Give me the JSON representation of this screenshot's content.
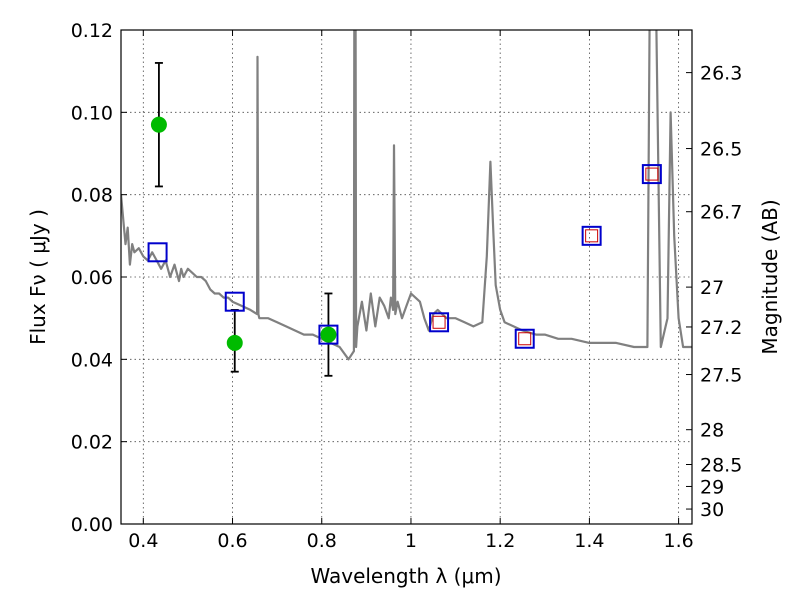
{
  "chart_data": {
    "type": "scatter",
    "title": "",
    "xlabel": "Wavelength  λ (μm)",
    "ylabel": "Flux  Fν  ( μJy )",
    "y2label": "Magnitude (AB)",
    "xlim": [
      0.35,
      1.63
    ],
    "ylim": [
      0,
      0.12
    ],
    "grid": true,
    "legend": "none",
    "x_ticks": [
      {
        "value": 0.4,
        "label": "0.4"
      },
      {
        "value": 0.6,
        "label": "0.6"
      },
      {
        "value": 0.8,
        "label": "0.8"
      },
      {
        "value": 1.0,
        "label": "1"
      },
      {
        "value": 1.2,
        "label": "1.2"
      },
      {
        "value": 1.4,
        "label": "1.4"
      },
      {
        "value": 1.6,
        "label": "1.6"
      }
    ],
    "y_ticks": [
      {
        "value": 0.0,
        "label": "0.00"
      },
      {
        "value": 0.02,
        "label": "0.02"
      },
      {
        "value": 0.04,
        "label": "0.04"
      },
      {
        "value": 0.06,
        "label": "0.06"
      },
      {
        "value": 0.08,
        "label": "0.08"
      },
      {
        "value": 0.1,
        "label": "0.10"
      },
      {
        "value": 0.12,
        "label": "0.12"
      }
    ],
    "y2_ticks": [
      {
        "value": 26.3,
        "label": "26.3"
      },
      {
        "value": 26.5,
        "label": "26.5"
      },
      {
        "value": 26.7,
        "label": "26.7"
      },
      {
        "value": 27.0,
        "label": "27"
      },
      {
        "value": 27.2,
        "label": "27.2"
      },
      {
        "value": 27.5,
        "label": "27.5"
      },
      {
        "value": 28.0,
        "label": "28"
      },
      {
        "value": 28.5,
        "label": "28.5"
      },
      {
        "value": 29.0,
        "label": "29"
      },
      {
        "value": 30.0,
        "label": "30"
      }
    ],
    "series": [
      {
        "kind": "line",
        "color": "#808080",
        "points": [
          [
            0.35,
            0.08
          ],
          [
            0.36,
            0.068
          ],
          [
            0.365,
            0.072
          ],
          [
            0.37,
            0.063
          ],
          [
            0.375,
            0.068
          ],
          [
            0.38,
            0.066
          ],
          [
            0.39,
            0.067
          ],
          [
            0.4,
            0.065
          ],
          [
            0.41,
            0.064
          ],
          [
            0.42,
            0.066
          ],
          [
            0.43,
            0.064
          ],
          [
            0.44,
            0.062
          ],
          [
            0.45,
            0.064
          ],
          [
            0.46,
            0.06
          ],
          [
            0.47,
            0.063
          ],
          [
            0.48,
            0.059
          ],
          [
            0.485,
            0.062
          ],
          [
            0.49,
            0.06
          ],
          [
            0.5,
            0.062
          ],
          [
            0.51,
            0.061
          ],
          [
            0.52,
            0.06
          ],
          [
            0.53,
            0.06
          ],
          [
            0.54,
            0.059
          ],
          [
            0.55,
            0.057
          ],
          [
            0.56,
            0.056
          ],
          [
            0.57,
            0.056
          ],
          [
            0.58,
            0.055
          ],
          [
            0.59,
            0.055
          ],
          [
            0.6,
            0.054
          ],
          [
            0.62,
            0.053
          ],
          [
            0.64,
            0.052
          ],
          [
            0.655,
            0.051
          ],
          [
            0.656,
            0.1135
          ],
          [
            0.658,
            0.051
          ],
          [
            0.66,
            0.05
          ],
          [
            0.68,
            0.05
          ],
          [
            0.7,
            0.049
          ],
          [
            0.72,
            0.048
          ],
          [
            0.74,
            0.047
          ],
          [
            0.76,
            0.046
          ],
          [
            0.78,
            0.046
          ],
          [
            0.8,
            0.045
          ],
          [
            0.82,
            0.044
          ],
          [
            0.84,
            0.043
          ],
          [
            0.86,
            0.04
          ],
          [
            0.872,
            0.042
          ],
          [
            0.873,
            0.122
          ],
          [
            0.876,
            0.122
          ],
          [
            0.877,
            0.043
          ],
          [
            0.88,
            0.048
          ],
          [
            0.89,
            0.054
          ],
          [
            0.9,
            0.047
          ],
          [
            0.91,
            0.056
          ],
          [
            0.92,
            0.048
          ],
          [
            0.93,
            0.055
          ],
          [
            0.94,
            0.053
          ],
          [
            0.95,
            0.05
          ],
          [
            0.955,
            0.055
          ],
          [
            0.96,
            0.052
          ],
          [
            0.962,
            0.092
          ],
          [
            0.965,
            0.051
          ],
          [
            0.97,
            0.054
          ],
          [
            0.98,
            0.05
          ],
          [
            0.99,
            0.053
          ],
          [
            1.0,
            0.056
          ],
          [
            1.01,
            0.055
          ],
          [
            1.02,
            0.054
          ],
          [
            1.03,
            0.05
          ],
          [
            1.04,
            0.047
          ],
          [
            1.05,
            0.051
          ],
          [
            1.06,
            0.052
          ],
          [
            1.08,
            0.05
          ],
          [
            1.1,
            0.05
          ],
          [
            1.12,
            0.049
          ],
          [
            1.14,
            0.048
          ],
          [
            1.16,
            0.049
          ],
          [
            1.17,
            0.065
          ],
          [
            1.178,
            0.088
          ],
          [
            1.185,
            0.07
          ],
          [
            1.19,
            0.058
          ],
          [
            1.2,
            0.052
          ],
          [
            1.21,
            0.049
          ],
          [
            1.23,
            0.048
          ],
          [
            1.25,
            0.047
          ],
          [
            1.28,
            0.046
          ],
          [
            1.3,
            0.046
          ],
          [
            1.33,
            0.045
          ],
          [
            1.36,
            0.045
          ],
          [
            1.4,
            0.044
          ],
          [
            1.43,
            0.044
          ],
          [
            1.46,
            0.044
          ],
          [
            1.5,
            0.043
          ],
          [
            1.53,
            0.043
          ],
          [
            1.535,
            0.122
          ],
          [
            1.55,
            0.122
          ],
          [
            1.56,
            0.043
          ],
          [
            1.575,
            0.05
          ],
          [
            1.582,
            0.1
          ],
          [
            1.59,
            0.07
          ],
          [
            1.6,
            0.05
          ],
          [
            1.61,
            0.043
          ],
          [
            1.63,
            0.043
          ]
        ]
      },
      {
        "kind": "points",
        "marker": "open-square",
        "color": "#0000cc",
        "points": [
          [
            0.432,
            0.066
          ],
          [
            0.605,
            0.054
          ],
          [
            0.815,
            0.046
          ],
          [
            1.063,
            0.049
          ],
          [
            1.255,
            0.045
          ],
          [
            1.405,
            0.07
          ],
          [
            1.54,
            0.085
          ]
        ]
      },
      {
        "kind": "points",
        "marker": "open-square-small",
        "color": "#cc0000",
        "points": [
          [
            1.063,
            0.049
          ],
          [
            1.255,
            0.045
          ],
          [
            1.405,
            0.07
          ],
          [
            1.54,
            0.085
          ]
        ]
      },
      {
        "kind": "points",
        "marker": "filled-circle",
        "color": "#00bb00",
        "points": [
          {
            "x": 0.435,
            "y": 0.097,
            "ylo": 0.082,
            "yhi": 0.112
          },
          {
            "x": 0.605,
            "y": 0.044,
            "ylo": 0.037,
            "yhi": 0.052
          },
          {
            "x": 0.815,
            "y": 0.046,
            "ylo": 0.036,
            "yhi": 0.056
          }
        ]
      }
    ]
  }
}
